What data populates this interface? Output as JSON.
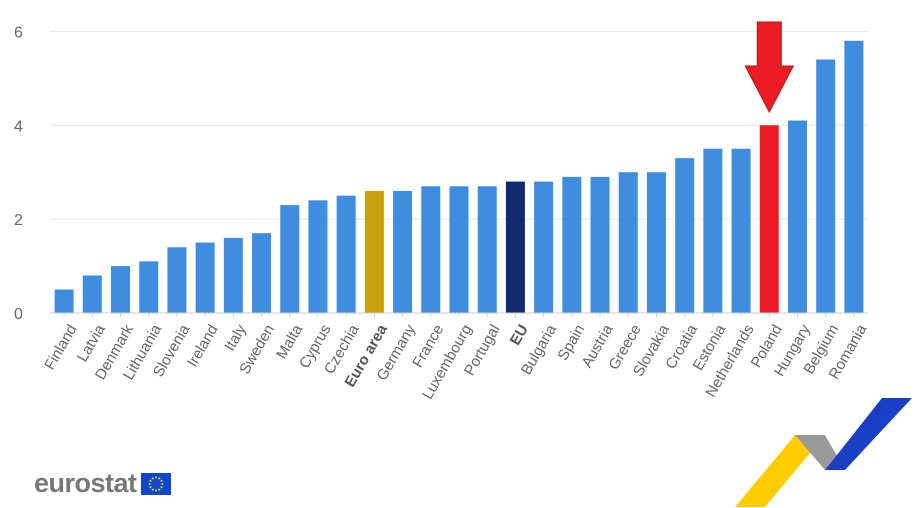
{
  "chart_data": {
    "type": "bar",
    "title": "",
    "xlabel": "",
    "ylabel": "",
    "ylim": [
      0,
      6.2
    ],
    "yticks": [
      0,
      2,
      4,
      6
    ],
    "grid": true,
    "categories": [
      "Finland",
      "Latvia",
      "Denmark",
      "Lithuania",
      "Slovenia",
      "Ireland",
      "Italy",
      "Sweden",
      "Malta",
      "Cyprus",
      "Czechia",
      "Euro area",
      "Germany",
      "France",
      "Luxembourg",
      "Portugal",
      "EU",
      "Bulgaria",
      "Spain",
      "Austria",
      "Greece",
      "Slovakia",
      "Croatia",
      "Estonia",
      "Netherlands",
      "Poland",
      "Hungary",
      "Belgium",
      "Romania"
    ],
    "values": [
      0.5,
      0.8,
      1.0,
      1.1,
      1.4,
      1.5,
      1.6,
      1.7,
      2.3,
      2.4,
      2.5,
      2.6,
      2.6,
      2.7,
      2.7,
      2.7,
      2.8,
      2.8,
      2.9,
      2.9,
      3.0,
      3.0,
      3.3,
      3.5,
      3.5,
      4.0,
      4.1,
      5.4,
      5.8
    ],
    "highlights": {
      "Euro area": "#c9a10f",
      "EU": "#0f2a6e",
      "Poland": "#ed1c24"
    },
    "bold_categories": [
      "Euro area",
      "EU"
    ],
    "annotation": {
      "type": "arrow",
      "target": "Poland",
      "color": "#ed1c24"
    }
  },
  "colors": {
    "bar_default": "#3e8de0",
    "grid": "#e6e6e6",
    "axis": "#cccccc"
  },
  "branding": {
    "logo_text": "eurostat",
    "flag_icon": "eu-flag-icon",
    "mark_icon": "eurostat-brand-mark-icon"
  }
}
